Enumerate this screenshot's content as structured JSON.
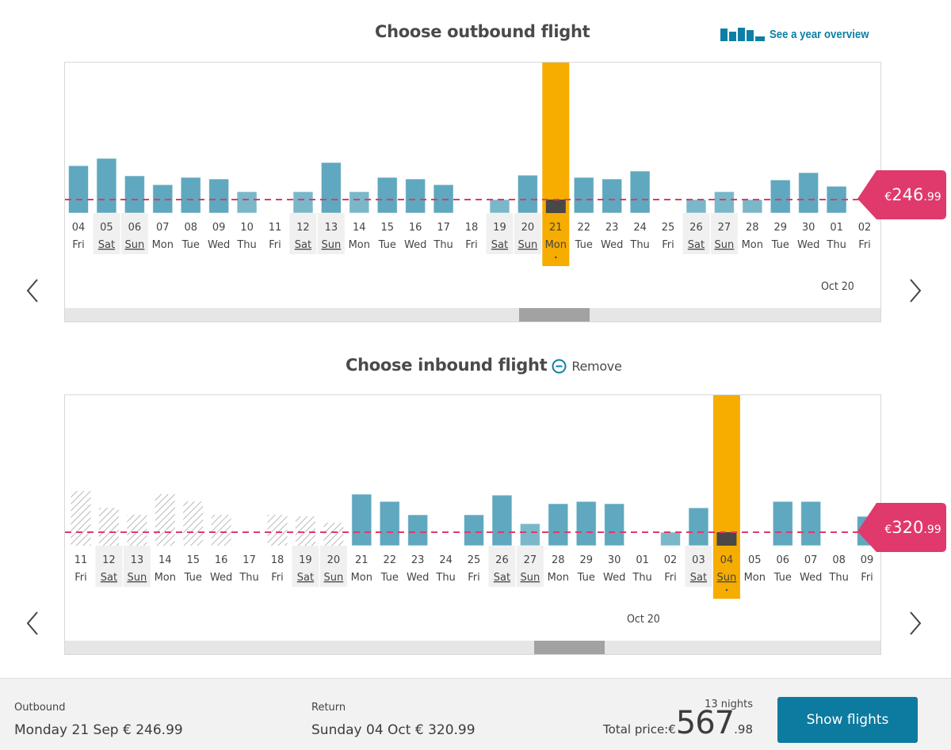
{
  "header": {
    "outbound_title": "Choose outbound flight",
    "year_overview_label": "See a year overview",
    "year_overview_icon": "bar-chart-icon",
    "inbound_title": "Choose inbound flight",
    "remove_label": "Remove",
    "remove_icon": "minus-circle-icon"
  },
  "colors": {
    "bar": "#5fa8bf",
    "bar_light": "#7ab7c9",
    "selected": "#f7ac00",
    "selected_bar": "#4a4747",
    "price_line": "#e0396b",
    "weekend_bg": "#f0f0f0",
    "button": "#0d7a9f",
    "link": "#0d7fa5"
  },
  "chart_data": [
    {
      "type": "bar",
      "title": "Choose outbound flight",
      "month_label": "Oct 20",
      "reference_price": {
        "currency": "€",
        "int": "246",
        "dec": ".99",
        "value": 246.99
      },
      "categories": [
        "04",
        "05",
        "06",
        "07",
        "08",
        "09",
        "10",
        "11",
        "12",
        "13",
        "14",
        "15",
        "16",
        "17",
        "18",
        "19",
        "20",
        "21",
        "22",
        "23",
        "24",
        "25",
        "26",
        "27",
        "28",
        "29",
        "30",
        "01",
        "02"
      ],
      "weekdays": [
        "Fri",
        "Sat",
        "Sun",
        "Mon",
        "Tue",
        "Wed",
        "Thu",
        "Fri",
        "Sat",
        "Sun",
        "Mon",
        "Tue",
        "Wed",
        "Thu",
        "Fri",
        "Sat",
        "Sun",
        "Mon",
        "Tue",
        "Wed",
        "Thu",
        "Fri",
        "Sat",
        "Sun",
        "Mon",
        "Tue",
        "Wed",
        "Thu",
        "Fri"
      ],
      "values": [
        354,
        377,
        322,
        294,
        317,
        312,
        272,
        null,
        272,
        364,
        272,
        317,
        312,
        294,
        null,
        247,
        324,
        247,
        317,
        312,
        337,
        null,
        247,
        272,
        247,
        309,
        332,
        289,
        null
      ],
      "unavailable": [],
      "selected_index": 17,
      "scroll_position": 0.61
    },
    {
      "type": "bar",
      "title": "Choose inbound flight",
      "month_label": "Oct 20",
      "reference_price": {
        "currency": "€",
        "int": "320",
        "dec": ".99",
        "value": 320.99
      },
      "categories": [
        "11",
        "12",
        "13",
        "14",
        "15",
        "16",
        "17",
        "18",
        "19",
        "20",
        "21",
        "22",
        "23",
        "24",
        "25",
        "26",
        "27",
        "28",
        "29",
        "30",
        "01",
        "02",
        "03",
        "04",
        "05",
        "06",
        "07",
        "08",
        "09"
      ],
      "weekdays": [
        "Fri",
        "Sat",
        "Sun",
        "Mon",
        "Tue",
        "Wed",
        "Thu",
        "Fri",
        "Sat",
        "Sun",
        "Mon",
        "Tue",
        "Wed",
        "Thu",
        "Fri",
        "Sat",
        "Sun",
        "Mon",
        "Tue",
        "Wed",
        "Thu",
        "Fri",
        "Sat",
        "Sun",
        "Mon",
        "Tue",
        "Wed",
        "Thu",
        "Fri"
      ],
      "values": [
        451,
        398,
        376,
        441,
        418,
        376,
        null,
        376,
        371,
        351,
        441,
        418,
        376,
        null,
        376,
        438,
        348,
        411,
        418,
        411,
        null,
        321,
        398,
        321,
        null,
        418,
        418,
        null,
        371
      ],
      "unavailable": [
        0,
        1,
        2,
        3,
        4,
        5,
        7,
        8,
        9
      ],
      "selected_index": 23,
      "scroll_position": 0.63
    }
  ],
  "footer": {
    "outbound_label": "Outbound",
    "outbound_value": "Monday 21 Sep € 246.99",
    "return_label": "Return",
    "return_value": "Sunday 04 Oct € 320.99",
    "nights": "13 nights",
    "total_label": "Total price:€",
    "total_int": "567",
    "total_dec": ".98",
    "show_flights_label": "Show flights"
  }
}
